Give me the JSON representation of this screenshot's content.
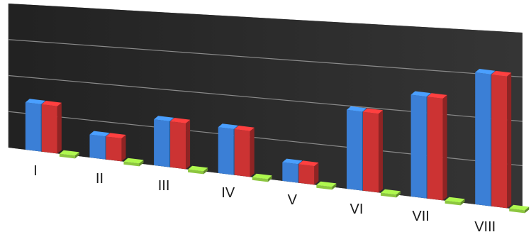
{
  "chart_data": {
    "type": "bar",
    "style": "3d-clustered-column",
    "categories": [
      "I",
      "II",
      "III",
      "IV",
      "V",
      "VI",
      "VII",
      "VIII"
    ],
    "series": [
      {
        "values": [
          3.3,
          1.6,
          3.2,
          3.2,
          1.3,
          5.5,
          7.1,
          9.2
        ],
        "color": "#3b7fd6"
      },
      {
        "values": [
          3.3,
          1.6,
          3.2,
          3.2,
          1.3,
          5.5,
          7.1,
          9.2
        ],
        "color": "#cc3333"
      },
      {
        "values": [
          0.1,
          0.1,
          0.1,
          0.1,
          0.1,
          0.1,
          0.1,
          0.1
        ],
        "color": "#8cc63f"
      }
    ],
    "ylim": [
      0,
      12
    ],
    "gridlines": true,
    "background": "#2a2a2a",
    "legend": "none"
  }
}
